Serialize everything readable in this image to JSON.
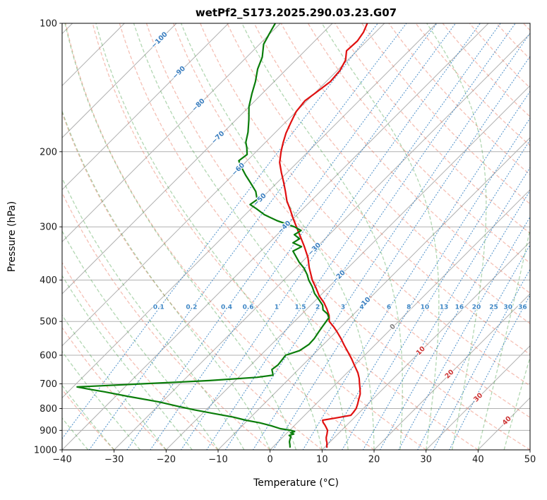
{
  "chart_data": {
    "type": "line",
    "chart_kind": "skew-t-log-p-sounding",
    "title": "wetPf2_S173.2025.290.03.23.G07",
    "xlabel": "Temperature (°C)",
    "ylabel": "Pressure (hPa)",
    "xlim": [
      -40,
      50
    ],
    "pressure_lim": [
      100,
      1000
    ],
    "x_ticks": [
      -40,
      -30,
      -20,
      -10,
      0,
      10,
      20,
      30,
      40,
      50
    ],
    "y_ticks": [
      100,
      200,
      300,
      400,
      500,
      600,
      700,
      800,
      900,
      1000
    ],
    "grid": true,
    "legend": "none",
    "skew_degrees": 45,
    "isotherm_step": 10,
    "colors": {
      "grid": "#b0b0b0",
      "frame": "#000000",
      "dry_adiabat": "#e8735c",
      "moist_adiabat": "#3f9b3f",
      "mixing": "#3f87c5",
      "isotherm_label_neg": "#3a7ebf",
      "isotherm_label_zero": "#7f7f7f",
      "isotherm_label_pos": "#cc3333",
      "tick_text": "#1a1a1a"
    },
    "dry_adiabats": {
      "start": -40,
      "end": 200,
      "step": 10
    },
    "moist_adiabats": {
      "start": -40,
      "end": 50,
      "step": 5
    },
    "mixing_ratios": {
      "values": [
        0.1,
        0.2,
        0.4,
        0.6,
        1,
        1.5,
        2,
        3,
        4,
        6,
        8,
        10,
        13,
        16,
        20,
        25,
        30,
        36
      ],
      "label_pressure": 467
    },
    "isotherm_labels": [
      {
        "value": -100,
        "y": 57
      },
      {
        "value": -90,
        "y": 103
      },
      {
        "value": -80,
        "y": 149
      },
      {
        "value": -70,
        "y": 195
      },
      {
        "value": -60,
        "y": 240
      },
      {
        "value": -50,
        "y": 283
      },
      {
        "value": -40,
        "y": 322
      },
      {
        "value": -30,
        "y": 353
      },
      {
        "value": -20,
        "y": 392
      },
      {
        "value": -10,
        "y": 430
      },
      {
        "value": 0,
        "y": 463
      },
      {
        "value": 10,
        "y": 497
      },
      {
        "value": 20,
        "y": 530
      },
      {
        "value": 30,
        "y": 563
      },
      {
        "value": 40,
        "y": 596
      }
    ],
    "series": [
      {
        "name": "temperature",
        "color": "#e01010",
        "points": [
          [
            100,
            -63.3
          ],
          [
            105,
            -62.3
          ],
          [
            110,
            -61.8
          ],
          [
            116,
            -62.0
          ],
          [
            122,
            -60.4
          ],
          [
            129,
            -59.5
          ],
          [
            137,
            -59.2
          ],
          [
            146,
            -59.9
          ],
          [
            152,
            -60.4
          ],
          [
            161,
            -60.0
          ],
          [
            171,
            -58.9
          ],
          [
            181,
            -57.8
          ],
          [
            190,
            -56.6
          ],
          [
            200,
            -55.2
          ],
          [
            212,
            -53.4
          ],
          [
            224,
            -51.1
          ],
          [
            236,
            -48.8
          ],
          [
            248,
            -46.7
          ],
          [
            261,
            -44.6
          ],
          [
            274,
            -42.2
          ],
          [
            287,
            -40.0
          ],
          [
            300,
            -37.8
          ],
          [
            316,
            -35.2
          ],
          [
            333,
            -32.6
          ],
          [
            354,
            -29.7
          ],
          [
            374,
            -27.5
          ],
          [
            400,
            -24.5
          ],
          [
            418,
            -22.2
          ],
          [
            436,
            -20.1
          ],
          [
            452,
            -17.9
          ],
          [
            468,
            -16.1
          ],
          [
            484,
            -14.5
          ],
          [
            500,
            -13.3
          ],
          [
            514,
            -11.5
          ],
          [
            528,
            -9.9
          ],
          [
            548,
            -7.8
          ],
          [
            568,
            -5.9
          ],
          [
            590,
            -3.8
          ],
          [
            612,
            -1.8
          ],
          [
            635,
            0.1
          ],
          [
            660,
            2.1
          ],
          [
            680,
            3.4
          ],
          [
            700,
            4.5
          ],
          [
            720,
            5.6
          ],
          [
            740,
            6.6
          ],
          [
            760,
            7.3
          ],
          [
            780,
            8.0
          ],
          [
            800,
            8.6
          ],
          [
            816,
            8.8
          ],
          [
            830,
            8.9
          ],
          [
            843,
            6.3
          ],
          [
            852,
            4.4
          ],
          [
            862,
            4.9
          ],
          [
            875,
            5.8
          ],
          [
            888,
            6.6
          ],
          [
            900,
            7.3
          ],
          [
            918,
            7.9
          ],
          [
            935,
            8.4
          ],
          [
            950,
            9.0
          ],
          [
            963,
            9.6
          ],
          [
            975,
            10.0
          ],
          [
            985,
            10.4
          ]
        ]
      },
      {
        "name": "dewpoint",
        "color": "#0a7d0a",
        "points": [
          [
            100,
            -81.0
          ],
          [
            106,
            -80.1
          ],
          [
            112,
            -79.2
          ],
          [
            120,
            -77.0
          ],
          [
            128,
            -75.6
          ],
          [
            137,
            -73.6
          ],
          [
            146,
            -72.0
          ],
          [
            157,
            -70.0
          ],
          [
            168,
            -67.6
          ],
          [
            180,
            -65.3
          ],
          [
            190,
            -63.8
          ],
          [
            196,
            -62.5
          ],
          [
            203,
            -61.2
          ],
          [
            210,
            -61.6
          ],
          [
            218,
            -59.7
          ],
          [
            227,
            -57.5
          ],
          [
            237,
            -55.0
          ],
          [
            248,
            -52.4
          ],
          [
            259,
            -50.6
          ],
          [
            266,
            -51.0
          ],
          [
            272,
            -49.0
          ],
          [
            281,
            -46.3
          ],
          [
            290,
            -42.8
          ],
          [
            300,
            -38.2
          ],
          [
            306,
            -36.2
          ],
          [
            313,
            -36.7
          ],
          [
            320,
            -34.9
          ],
          [
            327,
            -35.4
          ],
          [
            334,
            -33.0
          ],
          [
            342,
            -33.8
          ],
          [
            352,
            -32.2
          ],
          [
            363,
            -30.5
          ],
          [
            375,
            -28.4
          ],
          [
            388,
            -26.6
          ],
          [
            400,
            -25.2
          ],
          [
            415,
            -23.2
          ],
          [
            430,
            -21.5
          ],
          [
            445,
            -19.4
          ],
          [
            458,
            -17.7
          ],
          [
            470,
            -16.7
          ],
          [
            480,
            -15.1
          ],
          [
            490,
            -14.1
          ],
          [
            500,
            -13.9
          ],
          [
            515,
            -13.6
          ],
          [
            530,
            -13.3
          ],
          [
            548,
            -12.9
          ],
          [
            566,
            -12.8
          ],
          [
            585,
            -13.4
          ],
          [
            600,
            -15.2
          ],
          [
            616,
            -15.0
          ],
          [
            632,
            -14.8
          ],
          [
            648,
            -15.1
          ],
          [
            660,
            -14.3
          ],
          [
            668,
            -13.8
          ],
          [
            676,
            -16.5
          ],
          [
            688,
            -25.0
          ],
          [
            700,
            -37.0
          ],
          [
            712,
            -49.2
          ],
          [
            721,
            -46.4
          ],
          [
            731,
            -43.0
          ],
          [
            750,
            -37.4
          ],
          [
            772,
            -30.6
          ],
          [
            790,
            -26.2
          ],
          [
            806,
            -22.2
          ],
          [
            822,
            -17.8
          ],
          [
            838,
            -13.4
          ],
          [
            852,
            -10.4
          ],
          [
            864,
            -7.2
          ],
          [
            878,
            -4.4
          ],
          [
            892,
            -2.1
          ],
          [
            900,
            0.3
          ],
          [
            906,
            1.2
          ],
          [
            912,
            0.7
          ],
          [
            918,
            1.5
          ],
          [
            925,
            0.9
          ],
          [
            932,
            1.5
          ],
          [
            945,
            1.8
          ],
          [
            958,
            2.2
          ],
          [
            972,
            2.8
          ],
          [
            985,
            3.3
          ]
        ]
      }
    ]
  }
}
